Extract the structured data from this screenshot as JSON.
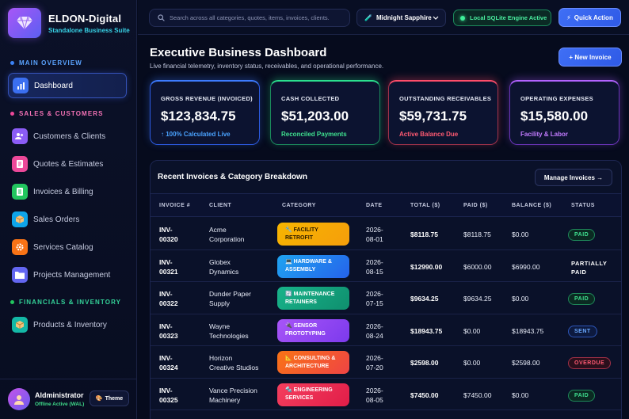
{
  "brand": {
    "name": "ELDON-Digital",
    "subtitle": "Standalone Business Suite"
  },
  "sidebar": {
    "sections": [
      {
        "label": "MAIN OVERVIEW",
        "color": "#3b82f6"
      },
      {
        "label": "SALES & CUSTOMERS",
        "color": "#ec4899"
      },
      {
        "label": "FINANCIALS & INVENTORY",
        "color": "#22c55e"
      }
    ],
    "items": [
      {
        "label": "Dashboard",
        "icon": "chart-icon",
        "color": "#3b6ff0",
        "active": true
      },
      {
        "label": "Customers & Clients",
        "icon": "users-icon",
        "color": "#8b5cf6"
      },
      {
        "label": "Quotes & Estimates",
        "icon": "quote-icon",
        "color": "#ec4899"
      },
      {
        "label": "Invoices & Billing",
        "icon": "invoice-icon",
        "color": "#22c55e"
      },
      {
        "label": "Sales Orders",
        "icon": "box-icon",
        "color": "#0ea5e9"
      },
      {
        "label": "Services Catalog",
        "icon": "gear-icon",
        "color": "#f97316"
      },
      {
        "label": "Projects Management",
        "icon": "folder-icon",
        "color": "#6366f1"
      },
      {
        "label": "Products & Inventory",
        "icon": "package-icon",
        "color": "#14b8a6"
      }
    ]
  },
  "user": {
    "name": "AIdministrator",
    "status": "Offline Active (WAL)",
    "theme_label": "Theme"
  },
  "topbar": {
    "search_placeholder": "Search across all categories, quotes, items, invoices, clients.",
    "theme_select": "Midnight Sapphire",
    "db_status": "Local SQLite Engine Active",
    "quick_action": "Quick Action"
  },
  "header": {
    "title": "Executive Business Dashboard",
    "subtitle": "Live financial telemetry, inventory status, receivables, and operational performance.",
    "new_invoice": "+ New Invoice"
  },
  "kpis": [
    {
      "label": "GROSS REVENUE (INVOICED)",
      "value": "$123,834.75",
      "note": "↑ 100% Calculated Live",
      "note_color": "#4aa3ff"
    },
    {
      "label": "CASH COLLECTED",
      "value": "$51,203.00",
      "note": "Reconciled Payments",
      "note_color": "#3fe08f"
    },
    {
      "label": "OUTSTANDING RECEIVABLES",
      "value": "$59,731.75",
      "note": "Active Balance Due",
      "note_color": "#ff5a72"
    },
    {
      "label": "OPERATING EXPENSES",
      "value": "$15,580.00",
      "note": "Facility & Labor",
      "note_color": "#c27bff"
    }
  ],
  "table": {
    "title": "Recent Invoices & Category Breakdown",
    "manage_label": "Manage Invoices →",
    "columns": [
      "INVOICE #",
      "CLIENT",
      "CATEGORY",
      "DATE",
      "TOTAL ($)",
      "PAID ($)",
      "BALANCE ($)",
      "STATUS"
    ],
    "rows": [
      {
        "invoice": [
          "INV-",
          "00320"
        ],
        "client": [
          "Acme",
          "Corporation"
        ],
        "category": [
          "🔧 FACILITY",
          "RETROFIT"
        ],
        "cat_bg": "linear-gradient(135deg,#f7b500,#f59e0b)",
        "cat_color": "#2a1a00",
        "date": [
          "2026-",
          "08-01"
        ],
        "total": "$8118.75",
        "paid": "$8118.75",
        "balance": "$0.00",
        "status": "PAID",
        "status_kind": "paid"
      },
      {
        "invoice": [
          "INV-",
          "00321"
        ],
        "client": [
          "Globex",
          "Dynamics"
        ],
        "category": [
          "💻 HARDWARE &",
          "ASSEMBLY"
        ],
        "cat_bg": "linear-gradient(135deg,#1fa3f0,#2563eb)",
        "cat_color": "#ffffff",
        "date": [
          "2026-",
          "08-15"
        ],
        "total": "$12990.00",
        "paid": "$6000.00",
        "balance": "$6990.00",
        "status": "PARTIALLY PAID",
        "status_kind": "partial"
      },
      {
        "invoice": [
          "INV-",
          "00322"
        ],
        "client": [
          "Dunder Paper",
          "Supply"
        ],
        "category": [
          "🔄 MAINTENANCE",
          "RETAINERS"
        ],
        "cat_bg": "linear-gradient(135deg,#18b38a,#0f8f6e)",
        "cat_color": "#ffffff",
        "date": [
          "2026-",
          "07-15"
        ],
        "total": "$9634.25",
        "paid": "$9634.25",
        "balance": "$0.00",
        "status": "PAID",
        "status_kind": "paid"
      },
      {
        "invoice": [
          "INV-",
          "00323"
        ],
        "client": [
          "Wayne",
          "Technologies"
        ],
        "category": [
          "🔌 SENSOR",
          "PROTOTYPING"
        ],
        "cat_bg": "linear-gradient(135deg,#a855f7,#7c3aed)",
        "cat_color": "#ffffff",
        "date": [
          "2026-",
          "08-24"
        ],
        "total": "$18943.75",
        "paid": "$0.00",
        "balance": "$18943.75",
        "status": "SENT",
        "status_kind": "sent"
      },
      {
        "invoice": [
          "INV-",
          "00324"
        ],
        "client": [
          "Horizon",
          "Creative Studios"
        ],
        "category": [
          "📐 CONSULTING &",
          "ARCHITECTURE"
        ],
        "cat_bg": "linear-gradient(135deg,#f97316,#ef4444)",
        "cat_color": "#ffffff",
        "date": [
          "2026-",
          "07-20"
        ],
        "total": "$2598.00",
        "paid": "$0.00",
        "balance": "$2598.00",
        "status": "OVERDUE",
        "status_kind": "overdue"
      },
      {
        "invoice": [
          "INV-",
          "00325"
        ],
        "client": [
          "Vance Precision",
          "Machinery"
        ],
        "category": [
          "🔩 ENGINEERING",
          "SERVICES"
        ],
        "cat_bg": "linear-gradient(135deg,#f43f5e,#e11d48)",
        "cat_color": "#ffffff",
        "date": [
          "2026-",
          "08-05"
        ],
        "total": "$7450.00",
        "paid": "$7450.00",
        "balance": "$0.00",
        "status": "PAID",
        "status_kind": "paid"
      }
    ]
  }
}
